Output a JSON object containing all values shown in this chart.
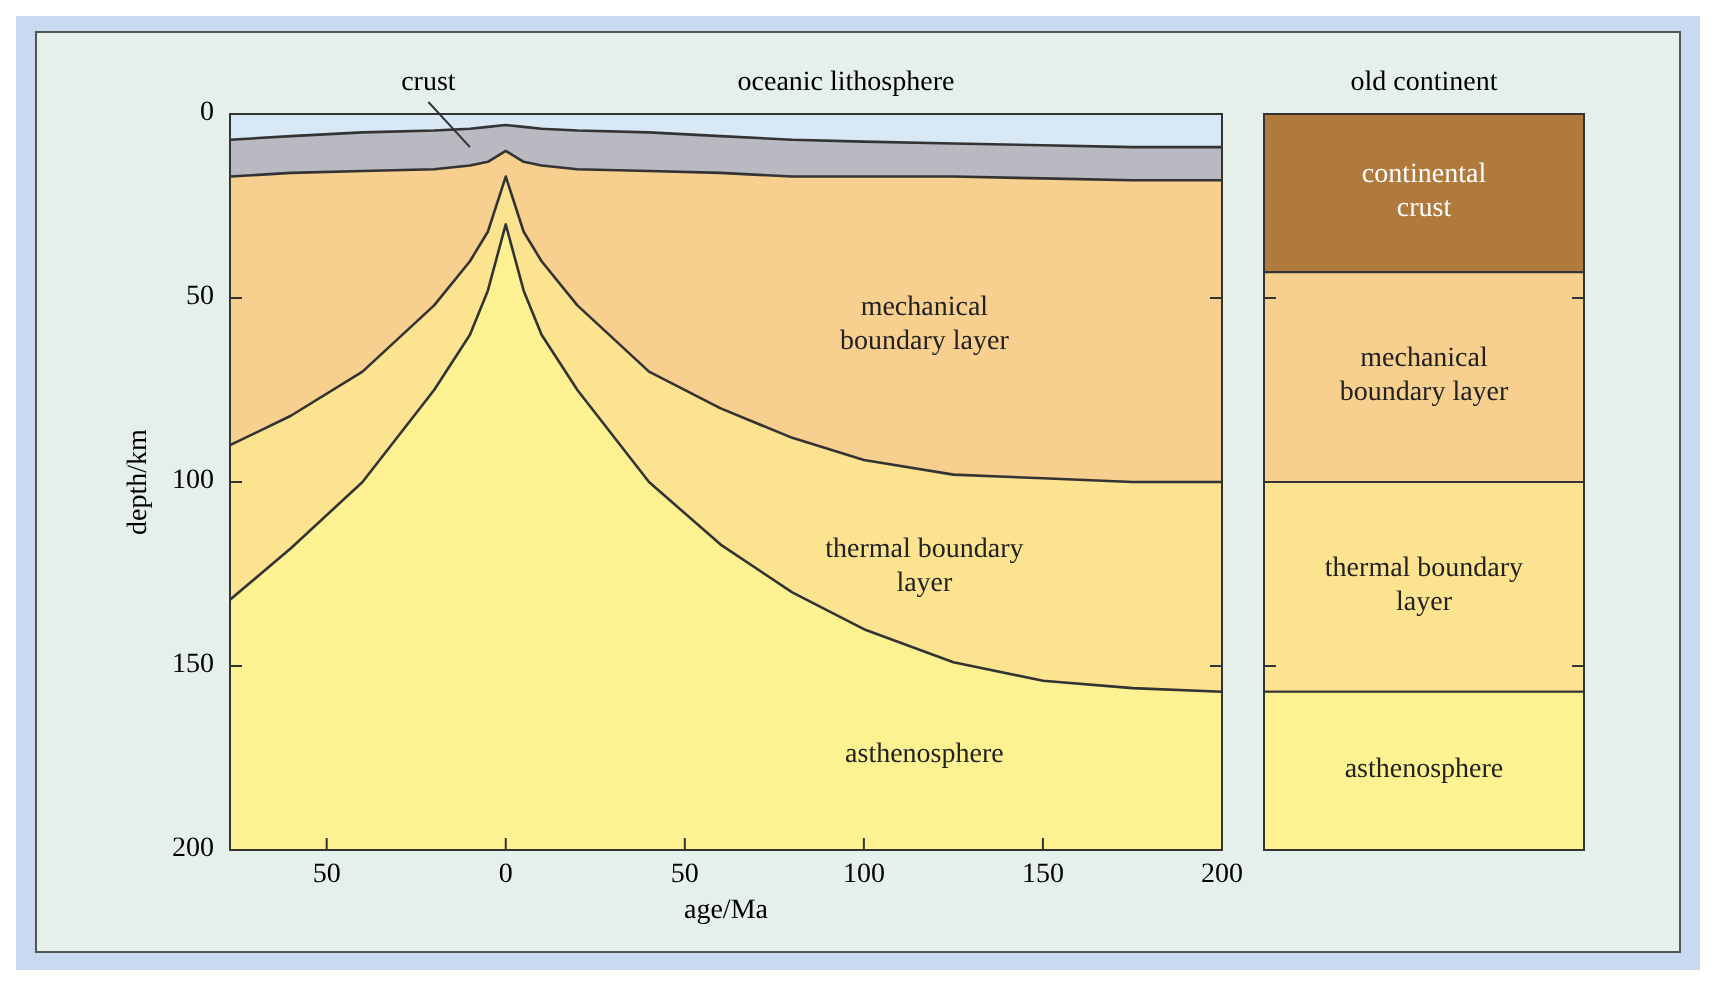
{
  "chart_data": [
    {
      "type": "area",
      "stacked": true,
      "title": "oceanic lithosphere",
      "xlabel": "age/Ma",
      "ylabel": "depth/km",
      "x": [
        -77,
        -60,
        -40,
        -20,
        -10,
        -5,
        0,
        5,
        10,
        20,
        40,
        60,
        80,
        100,
        125,
        150,
        175,
        200
      ],
      "xlim": [
        -77,
        200
      ],
      "xticks": [
        {
          "value": -50,
          "label": "50"
        },
        0,
        50,
        100,
        150,
        200
      ],
      "ylim": [
        200,
        0
      ],
      "yticks": [
        0,
        50,
        100,
        150,
        200
      ],
      "series": [
        {
          "color": "#d8e8f4",
          "values": [
            7,
            6,
            5,
            4.5,
            4,
            3.5,
            3,
            3.5,
            4,
            4.5,
            5,
            6,
            7,
            7.5,
            8,
            8.5,
            9,
            9
          ]
        },
        {
          "name": "crust",
          "color": "#b9b9c2",
          "values": [
            10,
            10,
            10.5,
            10.5,
            10,
            9.5,
            7,
            9.5,
            10,
            10.5,
            10.5,
            10,
            10,
            9.5,
            9,
            9,
            9,
            9
          ]
        },
        {
          "name": "mechanical boundary layer",
          "color": "#f7cf8e",
          "values": [
            73,
            66,
            54.5,
            37,
            26,
            19,
            7,
            19,
            26,
            37,
            54.5,
            64,
            71,
            77,
            81,
            81.5,
            82,
            82
          ]
        },
        {
          "name": "thermal boundary layer",
          "color": "#fbe390",
          "values": [
            42,
            36,
            30,
            23,
            20,
            16,
            13,
            16,
            20,
            23,
            30,
            37,
            42,
            46,
            51,
            55,
            56,
            57
          ]
        },
        {
          "name": "asthenosphere",
          "color": "#fcf292",
          "values": [
            68,
            82,
            100,
            125,
            140,
            152,
            170,
            152,
            140,
            125,
            100,
            83,
            70,
            60,
            51,
            46,
            44,
            43
          ]
        }
      ]
    },
    {
      "type": "bar",
      "stacked": true,
      "title": "old continent",
      "categories": [
        null
      ],
      "ylim": [
        200,
        0
      ],
      "yticks": [
        0,
        50,
        100,
        150,
        200
      ],
      "tick_labels": false,
      "series": [
        {
          "name": "continental crust",
          "color": "#b07a3c",
          "values": [
            43
          ]
        },
        {
          "name": "mechanical boundary layer",
          "color": "#f7cf8e",
          "values": [
            57
          ]
        },
        {
          "name": "thermal boundary layer",
          "color": "#fbe390",
          "values": [
            57
          ]
        },
        {
          "name": "asthenosphere",
          "color": "#fcf292",
          "values": [
            43
          ]
        }
      ]
    }
  ]
}
